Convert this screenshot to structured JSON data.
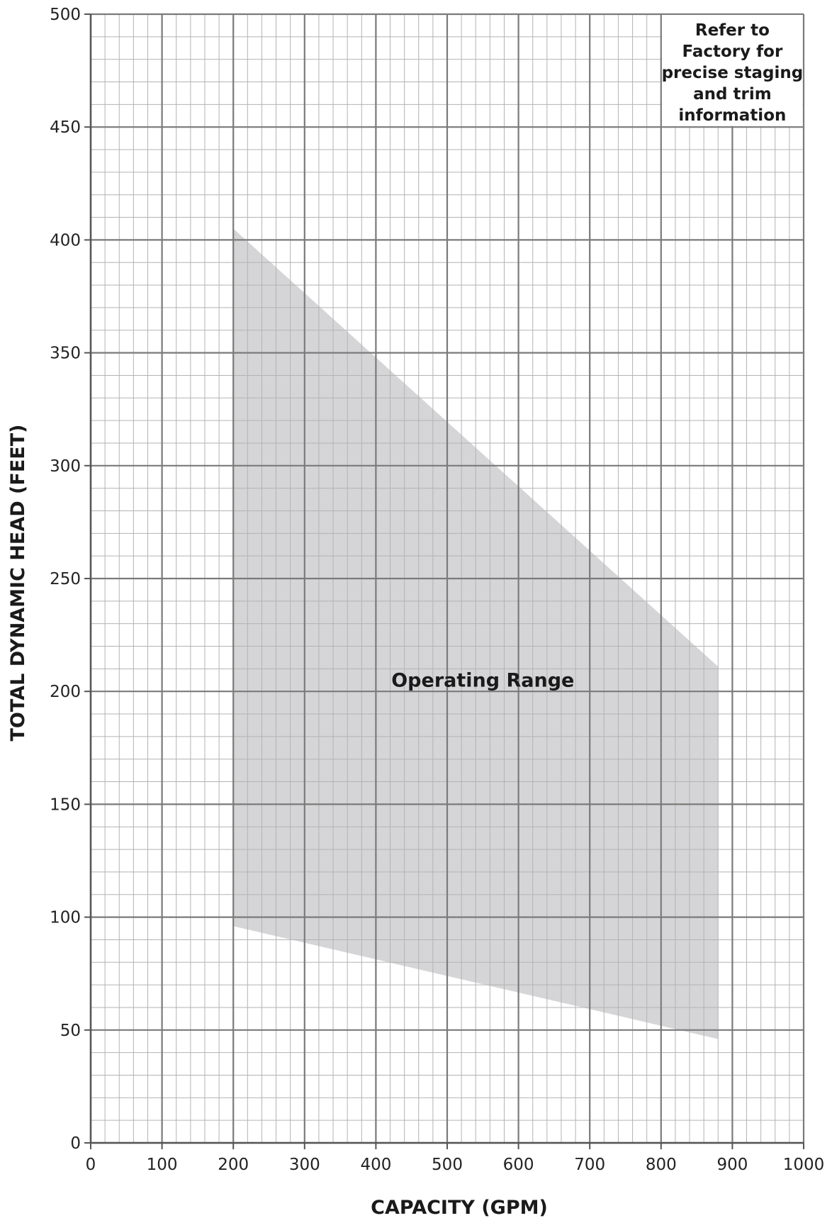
{
  "chart_data": {
    "type": "area",
    "xlabel": "CAPACITY (GPM)",
    "ylabel": "TOTAL DYNAMIC HEAD (FEET)",
    "xlim": [
      0,
      1000
    ],
    "ylim": [
      0,
      500
    ],
    "x_ticks": [
      0,
      100,
      200,
      300,
      400,
      500,
      600,
      700,
      800,
      900,
      1000
    ],
    "y_ticks": [
      0,
      50,
      100,
      150,
      200,
      250,
      300,
      350,
      400,
      450,
      500
    ],
    "x_tick_labels": [
      "0",
      "100",
      "200",
      "300",
      "400",
      "500",
      "600",
      "700",
      "800",
      "900",
      "1000"
    ],
    "y_tick_labels": [
      "0",
      "50",
      "100",
      "150",
      "200",
      "250",
      "300",
      "350",
      "400",
      "450",
      "500"
    ],
    "grid": true,
    "grid_minor_step_x": 20,
    "grid_minor_step_y": 10,
    "region": {
      "label": "Operating Range",
      "label_x": 550,
      "label_y": 205,
      "color": "#d5d5d7",
      "polygon": [
        [
          200,
          405
        ],
        [
          880,
          211
        ],
        [
          880,
          46
        ],
        [
          200,
          96
        ]
      ]
    },
    "note": {
      "lines": [
        "Refer to",
        "Factory for",
        "precise staging",
        "and trim",
        "information"
      ],
      "x_range": [
        800,
        1000
      ],
      "y_range": [
        450,
        500
      ]
    },
    "colors": {
      "major_grid": "#7a7a7a",
      "minor_grid": "#b3b3b3",
      "axis": "#555555"
    }
  }
}
